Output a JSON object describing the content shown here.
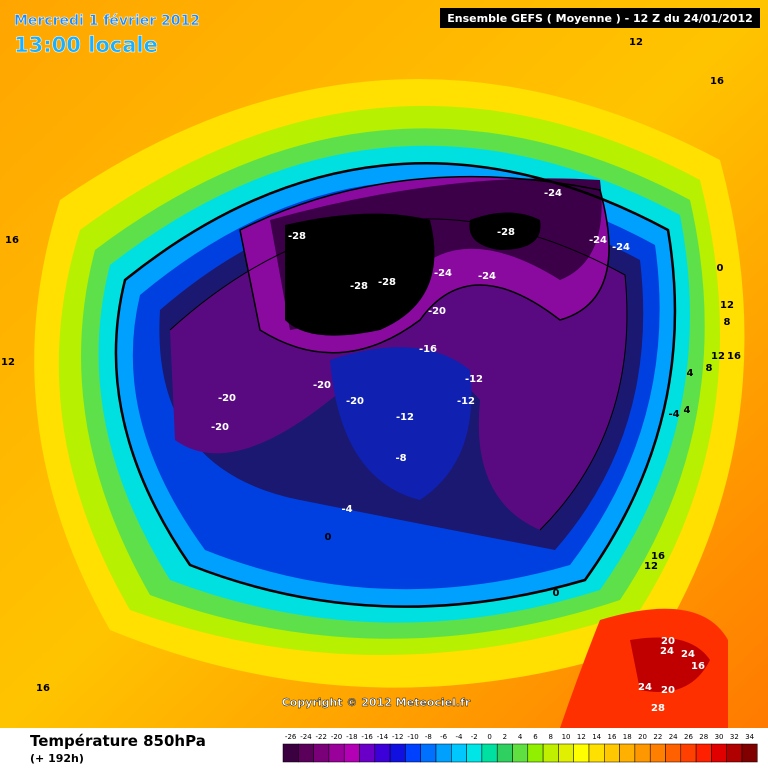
{
  "header": {
    "date": "Mercredi 1 février 2012",
    "time": "13:00 locale",
    "run": "Ensemble GEFS ( Moyenne )  -  12 Z du 24/01/2012"
  },
  "map": {
    "contour_labels": [
      "-28",
      "-28",
      "-28",
      "-28",
      "-24",
      "-24",
      "-24",
      "-24",
      "-24",
      "-20",
      "-16",
      "-20",
      "-20",
      "-20",
      "-20",
      "-12",
      "-12",
      "-12",
      "-8",
      "-4",
      "0",
      "0",
      "0",
      "12",
      "16",
      "16",
      "12",
      "16",
      "12",
      "8",
      "12",
      "16",
      "8",
      "4",
      "4",
      "-4",
      "16",
      "12",
      "20",
      "24",
      "24",
      "16",
      "24",
      "20",
      "28"
    ],
    "copyright": "Copyright © 2012 Meteociel.fr"
  },
  "legend": {
    "title": "Température 850hPa",
    "subtitle": "(+ 192h)",
    "scale": [
      -26,
      -24,
      -22,
      -20,
      -18,
      -16,
      -14,
      -12,
      -10,
      -8,
      -6,
      -4,
      -2,
      0,
      2,
      4,
      6,
      8,
      10,
      12,
      14,
      16,
      18,
      20,
      22,
      24,
      26,
      28,
      30,
      32,
      34
    ]
  }
}
